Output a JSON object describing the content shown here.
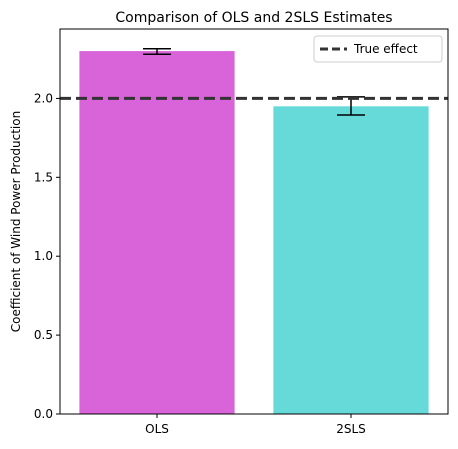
{
  "chart_data": {
    "type": "bar",
    "title": "Comparison of OLS and 2SLS Estimates",
    "xlabel": "",
    "ylabel": "Coefficient of Wind Power Production",
    "categories": [
      "OLS",
      "2SLS"
    ],
    "values": [
      2.3,
      1.95
    ],
    "error_low": [
      2.28,
      1.895
    ],
    "error_high": [
      2.315,
      2.01
    ],
    "bar_colors": [
      "#d963d9",
      "#66d9d9"
    ],
    "ylim": [
      0,
      2.44
    ],
    "yticks": [
      0.0,
      0.5,
      1.0,
      1.5,
      2.0,
      2.5
    ],
    "ytick_labels": [
      "0.0",
      "0.5",
      "1.0",
      "1.5",
      "2.0"
    ],
    "reference_line": {
      "value": 2.0,
      "label": "True effect",
      "color": "#333333",
      "style": "dashed"
    },
    "legend": {
      "position": "top-right",
      "entries": [
        "True effect"
      ]
    },
    "grid": false
  }
}
